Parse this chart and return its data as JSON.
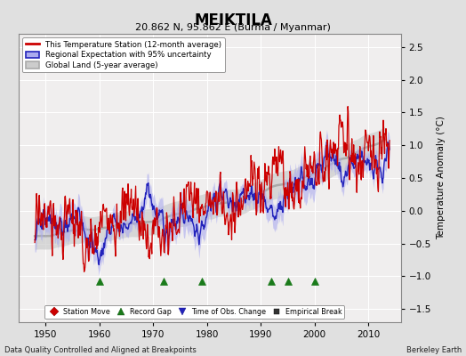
{
  "title": "MEIKTILA",
  "subtitle": "20.862 N, 95.862 E (Burma / Myanmar)",
  "ylabel": "Temperature Anomaly (°C)",
  "xlabel_left": "Data Quality Controlled and Aligned at Breakpoints",
  "xlabel_right": "Berkeley Earth",
  "xlim": [
    1945,
    2016
  ],
  "ylim": [
    -1.7,
    2.7
  ],
  "yticks": [
    -1.5,
    -1.0,
    -0.5,
    0.0,
    0.5,
    1.0,
    1.5,
    2.0,
    2.5
  ],
  "xticks": [
    1950,
    1960,
    1970,
    1980,
    1990,
    2000,
    2010
  ],
  "bg_color": "#e0e0e0",
  "plot_bg_color": "#f0eeee",
  "grid_color": "#ffffff",
  "station_color": "#cc0000",
  "regional_color": "#2222bb",
  "regional_fill": "#aaaaee",
  "global_color": "#aaaaaa",
  "global_fill": "#cccccc",
  "record_gap_years": [
    1960,
    1972,
    1979,
    1992,
    1995,
    2000
  ],
  "time_obs_years": [],
  "station_move_years": [],
  "empirical_break_years": []
}
